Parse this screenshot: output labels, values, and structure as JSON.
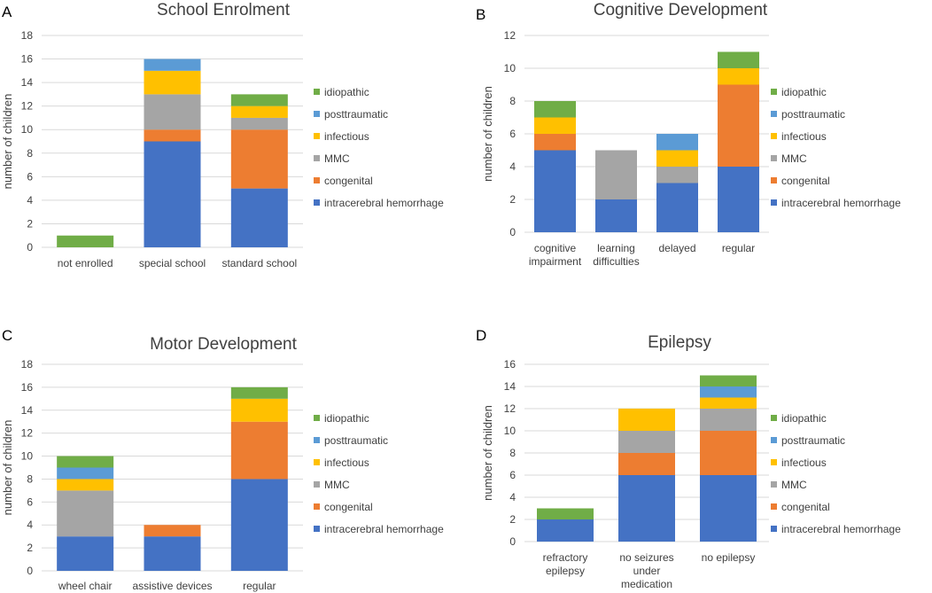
{
  "legend_series": [
    "idiopathic",
    "posttraumatic",
    "infectious",
    "MMC",
    "congenital",
    "intracerebral hemorrhage"
  ],
  "colors": {
    "intracerebral hemorrhage": "#4472c4",
    "congenital": "#ed7d31",
    "MMC": "#a5a5a5",
    "infectious": "#ffc000",
    "posttraumatic": "#5b9bd5",
    "idiopathic": "#70ad47"
  },
  "chart_data": [
    {
      "panel_letter": "A",
      "type": "bar",
      "stacked": true,
      "title": "School Enrolment",
      "ylabel": "number of children",
      "ylim": [
        0,
        18
      ],
      "yticks": [
        "0",
        "2",
        "4",
        "6",
        "8",
        "10",
        "12",
        "14",
        "16",
        "18"
      ],
      "categories": [
        [
          "not enrolled"
        ],
        [
          "special school"
        ],
        [
          "standard school"
        ]
      ],
      "series": [
        {
          "name": "intracerebral hemorrhage",
          "values": [
            0,
            9,
            5
          ]
        },
        {
          "name": "congenital",
          "values": [
            0,
            1,
            5
          ]
        },
        {
          "name": "MMC",
          "values": [
            0,
            3,
            1
          ]
        },
        {
          "name": "infectious",
          "values": [
            0,
            2,
            1
          ]
        },
        {
          "name": "posttraumatic",
          "values": [
            0,
            1,
            0
          ]
        },
        {
          "name": "idiopathic",
          "values": [
            1,
            0,
            1
          ]
        }
      ]
    },
    {
      "panel_letter": "B",
      "type": "bar",
      "stacked": true,
      "title": "Cognitive Development",
      "ylabel": "number of children",
      "ylim": [
        0,
        12
      ],
      "yticks": [
        "0",
        "2",
        "4",
        "6",
        "8",
        "10",
        "12"
      ],
      "categories": [
        [
          "cognitive",
          "impairment"
        ],
        [
          "learning",
          "difficulties"
        ],
        [
          "delayed"
        ],
        [
          "regular"
        ]
      ],
      "series": [
        {
          "name": "intracerebral hemorrhage",
          "values": [
            5,
            2,
            3,
            4
          ]
        },
        {
          "name": "congenital",
          "values": [
            1,
            0,
            0,
            5
          ]
        },
        {
          "name": "MMC",
          "values": [
            0,
            3,
            1,
            0
          ]
        },
        {
          "name": "infectious",
          "values": [
            1,
            0,
            1,
            1
          ]
        },
        {
          "name": "posttraumatic",
          "values": [
            0,
            0,
            1,
            0
          ]
        },
        {
          "name": "idiopathic",
          "values": [
            1,
            0,
            0,
            1
          ]
        }
      ]
    },
    {
      "panel_letter": "C",
      "type": "bar",
      "stacked": true,
      "title": "Motor Development",
      "ylabel": "number of children",
      "ylim": [
        0,
        18
      ],
      "yticks": [
        "0",
        "2",
        "4",
        "6",
        "8",
        "10",
        "12",
        "14",
        "16",
        "18"
      ],
      "categories": [
        [
          "wheel chair"
        ],
        [
          "assistive devices"
        ],
        [
          "regular"
        ]
      ],
      "series": [
        {
          "name": "intracerebral hemorrhage",
          "values": [
            3,
            3,
            8
          ]
        },
        {
          "name": "congenital",
          "values": [
            0,
            1,
            5
          ]
        },
        {
          "name": "MMC",
          "values": [
            4,
            0,
            0
          ]
        },
        {
          "name": "infectious",
          "values": [
            1,
            0,
            2
          ]
        },
        {
          "name": "posttraumatic",
          "values": [
            1,
            0,
            0
          ]
        },
        {
          "name": "idiopathic",
          "values": [
            1,
            0,
            1
          ]
        }
      ]
    },
    {
      "panel_letter": "D",
      "type": "bar",
      "stacked": true,
      "title": "Epilepsy",
      "ylabel": "number of children",
      "ylim": [
        0,
        16
      ],
      "yticks": [
        "0",
        "2",
        "4",
        "6",
        "8",
        "10",
        "12",
        "14",
        "16"
      ],
      "categories": [
        [
          "refractory",
          "epilepsy"
        ],
        [
          "no seizures",
          "under",
          "medication"
        ],
        [
          "no epilepsy"
        ]
      ],
      "series": [
        {
          "name": "intracerebral hemorrhage",
          "values": [
            2,
            6,
            6
          ]
        },
        {
          "name": "congenital",
          "values": [
            0,
            2,
            4
          ]
        },
        {
          "name": "MMC",
          "values": [
            0,
            2,
            2
          ]
        },
        {
          "name": "infectious",
          "values": [
            0,
            2,
            1
          ]
        },
        {
          "name": "posttraumatic",
          "values": [
            0,
            0,
            1
          ]
        },
        {
          "name": "idiopathic",
          "values": [
            1,
            0,
            1
          ]
        }
      ]
    }
  ]
}
